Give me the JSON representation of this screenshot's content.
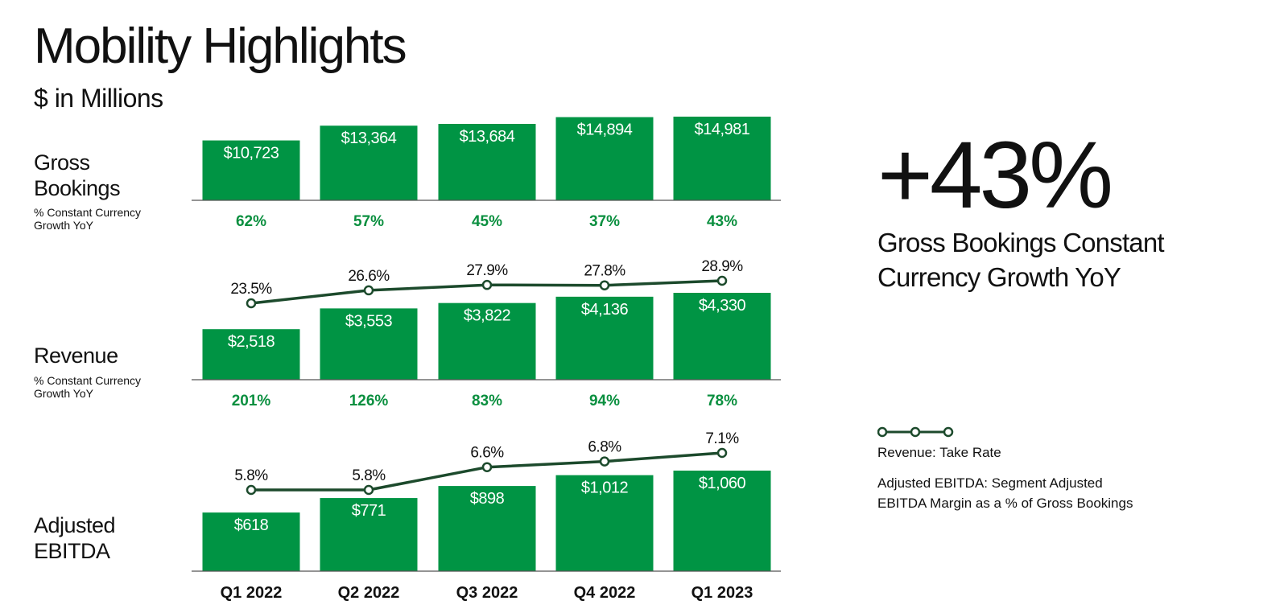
{
  "header": {
    "title": "Mobility Highlights",
    "subtitle": "$ in Millions"
  },
  "rows": {
    "gross_bookings": {
      "label_line1": "Gross",
      "label_line2": "Bookings",
      "sub_line1": "% Constant Currency",
      "sub_line2": "Growth YoY"
    },
    "revenue": {
      "label": "Revenue",
      "sub_line1": "% Constant Currency",
      "sub_line2": "Growth YoY"
    },
    "ebitda": {
      "label_line1": "Adjusted",
      "label_line2": "EBITDA"
    }
  },
  "highlight": {
    "value": "+43%",
    "caption": "Gross Bookings Constant Currency Growth YoY"
  },
  "legend": {
    "take_rate": "Revenue: Take Rate",
    "ebitda_line1": "Adjusted EBITDA: Segment Adjusted",
    "ebitda_line2": "EBITDA Margin as a % of Gross Bookings"
  },
  "colors": {
    "bar": "#009444",
    "growth_text": "#0a8f3f",
    "line": "#1c4a2c",
    "axis": "#555555"
  },
  "chart_data": {
    "type": "bar",
    "categories": [
      "Q1 2022",
      "Q2 2022",
      "Q3 2022",
      "Q4 2022",
      "Q1 2023"
    ],
    "panels": [
      {
        "id": "gross_bookings",
        "values": [
          10723,
          13364,
          13684,
          14894,
          14981
        ],
        "value_labels": [
          "$10,723",
          "$13,364",
          "$13,684",
          "$14,894",
          "$14,981"
        ],
        "growth_labels": [
          "62%",
          "57%",
          "45%",
          "37%",
          "43%"
        ]
      },
      {
        "id": "revenue",
        "values": [
          2518,
          3553,
          3822,
          4136,
          4330
        ],
        "value_labels": [
          "$2,518",
          "$3,553",
          "$3,822",
          "$4,136",
          "$4,330"
        ],
        "growth_labels": [
          "201%",
          "126%",
          "83%",
          "94%",
          "78%"
        ],
        "line": {
          "values": [
            23.5,
            26.6,
            27.9,
            27.8,
            28.9
          ],
          "labels": [
            "23.5%",
            "26.6%",
            "27.9%",
            "27.8%",
            "28.9%"
          ]
        }
      },
      {
        "id": "ebitda",
        "values": [
          618,
          771,
          898,
          1012,
          1060
        ],
        "value_labels": [
          "$618",
          "$771",
          "$898",
          "$1,012",
          "$1,060"
        ],
        "line": {
          "values": [
            5.8,
            5.8,
            6.6,
            6.8,
            7.1
          ],
          "labels": [
            "5.8%",
            "5.8%",
            "6.6%",
            "6.8%",
            "7.1%"
          ]
        }
      }
    ]
  }
}
